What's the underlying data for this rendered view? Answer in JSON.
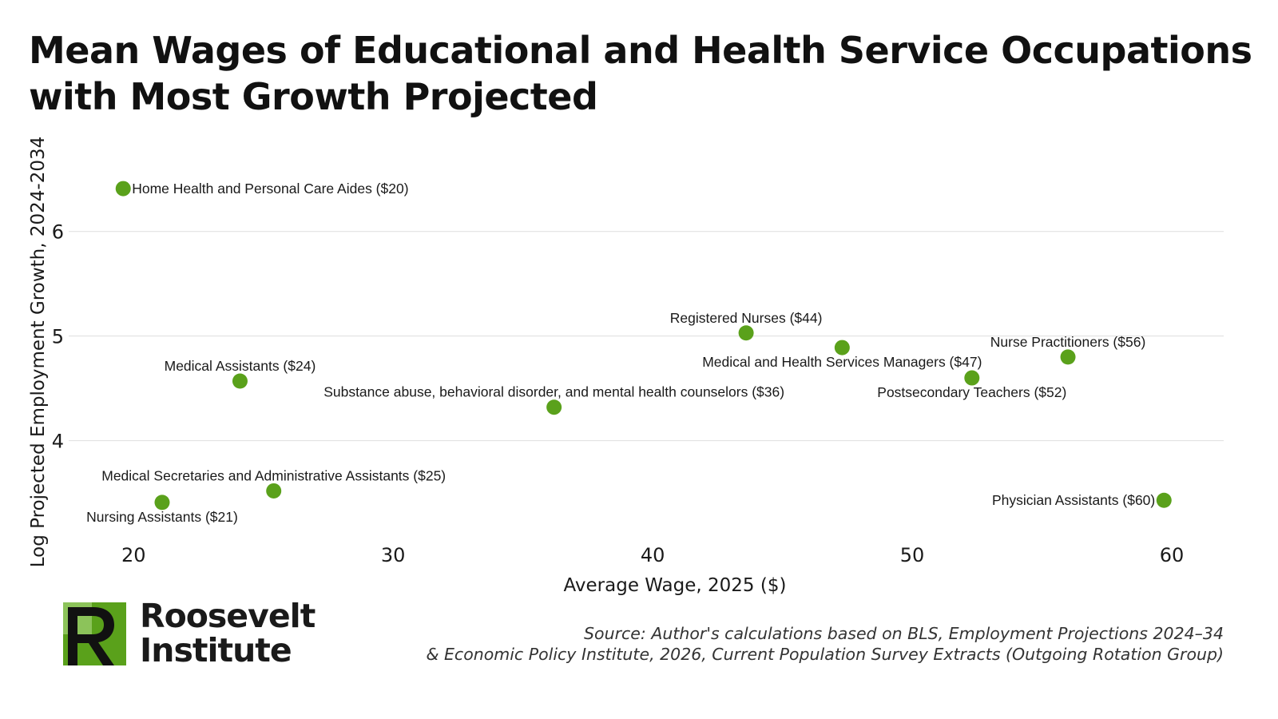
{
  "title_lines": [
    "Mean Wages of Educational and Health Service Occupations",
    "with Most Growth Projected"
  ],
  "chart_data": {
    "type": "scatter",
    "xlabel": "Average Wage, 2025 ($)",
    "ylabel": "Log Projected Employment Growth, 2024-2034",
    "xlim": [
      17.5,
      62
    ],
    "ylim": [
      3.05,
      6.8
    ],
    "x_ticks": [
      20,
      30,
      40,
      50,
      60
    ],
    "y_ticks": [
      4,
      5,
      6
    ],
    "grid": "horizontal",
    "point_color": "#5aa11b",
    "points": [
      {
        "label": "Home Health and Personal Care Aides ($20)",
        "x": 19.6,
        "y": 6.41,
        "label_pos": "right"
      },
      {
        "label": "Nursing Assistants ($21)",
        "x": 21.1,
        "y": 3.41,
        "label_pos": "below"
      },
      {
        "label": "Medical Assistants ($24)",
        "x": 24.1,
        "y": 4.57,
        "label_pos": "above"
      },
      {
        "label": "Medical Secretaries and Administrative Assistants ($25)",
        "x": 25.4,
        "y": 3.52,
        "label_pos": "above"
      },
      {
        "label": "Substance abuse, behavioral disorder, and mental health counselors ($36)",
        "x": 36.2,
        "y": 4.32,
        "label_pos": "above"
      },
      {
        "label": "Registered Nurses ($44)",
        "x": 43.6,
        "y": 5.03,
        "label_pos": "above"
      },
      {
        "label": "Medical and Health Services Managers ($47)",
        "x": 47.3,
        "y": 4.89,
        "label_pos": "below"
      },
      {
        "label": "Postsecondary Teachers ($52)",
        "x": 52.3,
        "y": 4.6,
        "label_pos": "below"
      },
      {
        "label": "Nurse Practitioners ($56)",
        "x": 56.0,
        "y": 4.8,
        "label_pos": "above"
      },
      {
        "label": "Physician Assistants ($60)",
        "x": 59.7,
        "y": 3.43,
        "label_pos": "left"
      }
    ]
  },
  "logo": {
    "line1": "Roosevelt",
    "line2": "Institute",
    "colors": {
      "green": "#5aa11b",
      "light_green": "#8cc35a",
      "dark": "#111111"
    }
  },
  "source_lines": [
    "Source: Author's calculations based on BLS, Employment Projections 2024–34",
    "& Economic Policy Institute, 2026, Current Population Survey Extracts (Outgoing Rotation Group)"
  ]
}
